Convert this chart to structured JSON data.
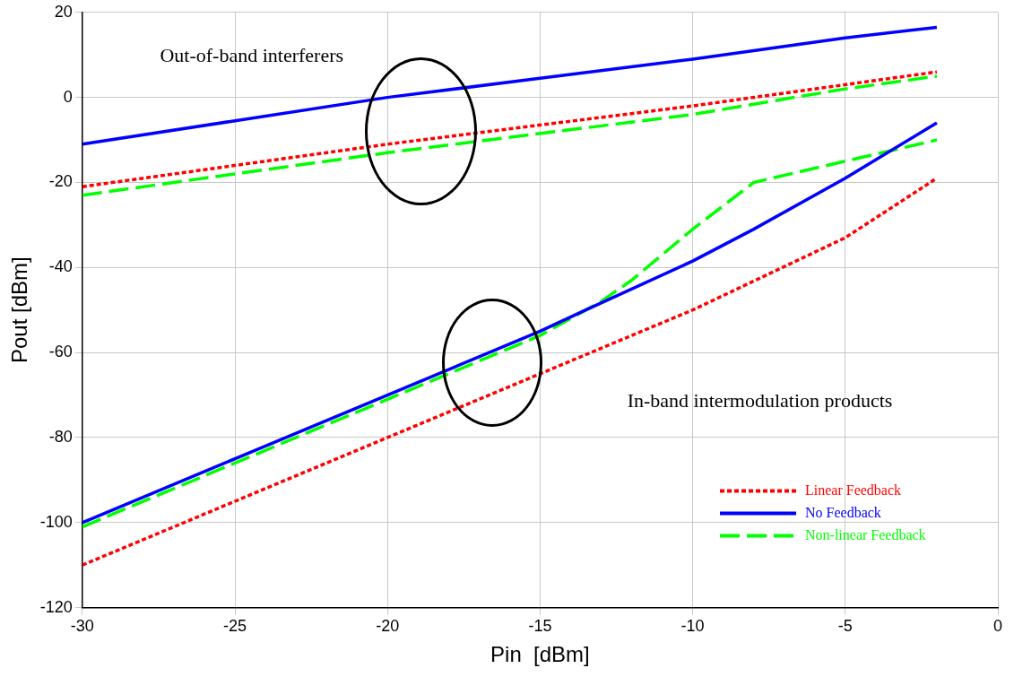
{
  "chart_data": {
    "type": "line",
    "xlabel": "Pin  [dBm]",
    "ylabel": "Pout [dBm]",
    "xlim": [
      -30,
      0
    ],
    "xticks": [
      -30,
      -25,
      -20,
      -15,
      -10,
      -5,
      0
    ],
    "ylim": [
      -120,
      20
    ],
    "yticks": [
      -120,
      -100,
      -80,
      -60,
      -40,
      -20,
      0,
      20
    ],
    "grid": true,
    "legend": "bottom right",
    "marker": "none",
    "annotations": [
      "Out-of-band interferers",
      "In-band intermodulation products"
    ],
    "series": [
      {
        "name": "Linear Feedback",
        "color": "#ff0000",
        "line_style": "dotted",
        "x": [
          -30,
          -20,
          -10,
          -5,
          -2
        ],
        "values": [
          -110,
          -80,
          -50,
          -33,
          -19
        ]
      },
      {
        "name": "No Feedback",
        "color": "#0000ff",
        "line_style": "solid",
        "x": [
          -30,
          -20,
          -15,
          -13.5,
          -10,
          -8,
          -5,
          -2
        ],
        "values": [
          -100,
          -70,
          -55,
          -50,
          -38.5,
          -31,
          -19,
          -6
        ]
      },
      {
        "name": "Non-linear Feedback",
        "color": "#00ff00",
        "line_style": "dashed",
        "x": [
          -30,
          -20,
          -15,
          -13,
          -12,
          -10,
          -8,
          -5,
          -2
        ],
        "values": [
          -101,
          -71,
          -56,
          -48,
          -43,
          -31,
          -20,
          -15,
          -10
        ]
      },
      {
        "color": "#ff0000",
        "line_style": "dotted",
        "x": [
          -30,
          -20,
          -10,
          -5,
          -2
        ],
        "values": [
          -21,
          -11,
          -2,
          3,
          6
        ]
      },
      {
        "color": "#0000ff",
        "line_style": "solid",
        "x": [
          -30,
          -25,
          -20,
          -15,
          -10,
          -5,
          -2
        ],
        "values": [
          -11,
          -5.5,
          0,
          4.5,
          9,
          14,
          16.5
        ]
      },
      {
        "color": "#00ff00",
        "line_style": "dashed",
        "x": [
          -30,
          -20,
          -10,
          -5,
          -2
        ],
        "values": [
          -23,
          -13,
          -4,
          2,
          5
        ]
      }
    ]
  }
}
